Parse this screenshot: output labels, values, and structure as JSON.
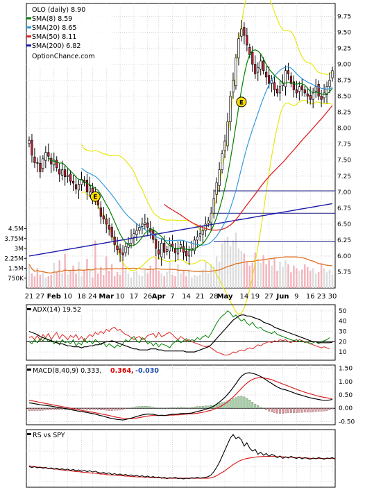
{
  "legend": [
    {
      "label": "OLO (daily) 8.90",
      "color": ""
    },
    {
      "label": "SMA(8) 8.59",
      "color": "#008000"
    },
    {
      "label": "SMA(20) 8.65",
      "color": "#3399dd"
    },
    {
      "label": "SMA(50) 8.11",
      "color": "#dd2222"
    },
    {
      "label": "SMA(200) 6.82",
      "color": "#1a1aaa"
    }
  ],
  "site": "OptionChance.com",
  "colors": {
    "up": "#ffffff",
    "down": "#cc2233",
    "sma8": "#008000",
    "sma20": "#3399dd",
    "sma50": "#dd2222",
    "sma200": "#1a1aaa",
    "bb": "#e6e600",
    "vol_up": "#dddddd",
    "vol_down": "#f2b6be",
    "vol_avg": "#e07020",
    "adx": "#000000",
    "pdi": "#008000",
    "mdi": "#dd2222",
    "macd": "#000000",
    "signal": "#dd2222",
    "rs": "#000000",
    "rs_ma": "#dd2222",
    "earnings": "#ffe000"
  },
  "chart_data": [
    {
      "type": "candlestick",
      "title": "OLO (daily) 8.90",
      "y_ticks": [
        "9.75",
        "9.50",
        "9.25",
        "9.00",
        "8.75",
        "8.50",
        "8.25",
        "8.00",
        "7.75",
        "7.50",
        "7.25",
        "7.00",
        "6.75",
        "6.50",
        "6.25",
        "6.00",
        "5.75"
      ],
      "ylim": [
        5.5,
        9.95
      ],
      "x_labels": [
        "21",
        "27",
        "Feb",
        "10",
        "18",
        "24",
        "Mar",
        "10",
        "17",
        "26",
        "Apr",
        "7",
        "14",
        "21",
        "28",
        "May",
        "14",
        "19",
        "27",
        "Jun",
        "9",
        "16",
        "23",
        "30"
      ],
      "x_label_index": [
        0,
        4,
        9,
        14,
        19,
        23,
        28,
        33,
        38,
        43,
        47,
        52,
        57,
        62,
        67,
        71,
        78,
        82,
        87,
        92,
        97,
        102,
        106,
        110
      ],
      "bold_labels": [
        "Feb",
        "Mar",
        "Apr",
        "May",
        "Jun"
      ],
      "earnings_marker": "E",
      "earnings_points": [
        {
          "i": 24,
          "price": 6.93
        },
        {
          "i": 77,
          "price": 8.41
        }
      ],
      "horizontal_levels": [
        7.02,
        6.67,
        6.23
      ],
      "closes": [
        7.81,
        7.58,
        7.46,
        7.45,
        7.32,
        7.52,
        7.62,
        7.56,
        7.44,
        7.5,
        7.38,
        7.28,
        7.35,
        7.24,
        7.26,
        7.17,
        7.14,
        7.05,
        7.12,
        7.2,
        7.15,
        7.0,
        7.1,
        6.95,
        6.9,
        6.8,
        6.62,
        6.58,
        6.5,
        6.42,
        6.3,
        6.18,
        6.1,
        6.05,
        6.02,
        6.15,
        6.2,
        6.28,
        6.35,
        6.4,
        6.45,
        6.5,
        6.52,
        6.45,
        6.37,
        6.26,
        6.12,
        6.03,
        6.2,
        6.06,
        6.1,
        6.19,
        6.15,
        6.05,
        6.12,
        6.18,
        6.06,
        6.0,
        6.08,
        6.12,
        6.25,
        6.3,
        6.35,
        6.4,
        6.5,
        6.55,
        6.67,
        6.9,
        7.15,
        7.35,
        7.6,
        7.8,
        8.1,
        8.5,
        8.75,
        9.1,
        9.4,
        9.55,
        9.45,
        9.3,
        9.15,
        9.0,
        8.85,
        8.95,
        9.05,
        8.9,
        8.8,
        8.7,
        8.75,
        8.6,
        8.55,
        8.65,
        8.7,
        8.9,
        8.85,
        8.7,
        8.6,
        8.55,
        8.65,
        8.6,
        8.55,
        8.5,
        8.45,
        8.55,
        8.65,
        8.5,
        8.45,
        8.55,
        8.65,
        8.75,
        8.9
      ],
      "volume_ticks": [
        "4.5M",
        "3.75M",
        "3M",
        "2.25M",
        "1.5M",
        "750K"
      ],
      "volume_max_millions": 5.0,
      "volume_millions": [
        1.8,
        1.1,
        0.9,
        1.5,
        1.0,
        1.2,
        0.8,
        0.9,
        1.0,
        1.9,
        1.2,
        2.1,
        1.1,
        2.6,
        1.0,
        1.3,
        1.7,
        1.1,
        2.0,
        0.9,
        1.3,
        2.2,
        1.4,
        0.8,
        3.6,
        1.1,
        1.6,
        1.0,
        2.4,
        1.3,
        1.8,
        0.9,
        1.2,
        1.0,
        2.0,
        1.5,
        1.1,
        0.8,
        1.2,
        1.3,
        1.0,
        0.9,
        1.4,
        1.1,
        1.7,
        1.4,
        2.5,
        1.3,
        1.1,
        0.9,
        1.2,
        2.2,
        1.0,
        0.9,
        1.8,
        1.1,
        1.3,
        0.9,
        1.4,
        0.8,
        1.0,
        0.9,
        1.0,
        1.4,
        2.0,
        1.1,
        1.8,
        1.6,
        2.4,
        2.0,
        3.4,
        3.6,
        3.9,
        3.2,
        3.6,
        4.2,
        3.0,
        2.8,
        2.6,
        2.0,
        1.7,
        1.9,
        2.7,
        2.2,
        1.9,
        2.5,
        1.8,
        2.1,
        1.7,
        2.3,
        1.3,
        2.0,
        1.6,
        2.1,
        1.8,
        1.2,
        1.7,
        1.5,
        1.3,
        1.4,
        1.8,
        1.6,
        1.3,
        1.5,
        1.1,
        1.2,
        1.9,
        1.5,
        1.2,
        1.4,
        1.0
      ]
    },
    {
      "type": "line",
      "name": "ADX(14) 19.52",
      "y_ticks": [
        "50",
        "40",
        "30",
        "20",
        "10"
      ],
      "ylim": [
        2,
        56
      ],
      "reference_line": 20,
      "adx": [
        30,
        29,
        28,
        27,
        25,
        24,
        23,
        22,
        21,
        20,
        19,
        18,
        18,
        17,
        16,
        16,
        15,
        15,
        15,
        14,
        15,
        15,
        16,
        16,
        17,
        17,
        18,
        19,
        20,
        20,
        21,
        20,
        19,
        18,
        17,
        16,
        15,
        14,
        13,
        13,
        12,
        12,
        12,
        12,
        13,
        13,
        13,
        12,
        12,
        11,
        11,
        11,
        11,
        11,
        11,
        11,
        11,
        10,
        10,
        10,
        10,
        11,
        12,
        13,
        14,
        15,
        17,
        20,
        23,
        26,
        29,
        32,
        35,
        38,
        41,
        43,
        45,
        46,
        46,
        45,
        45,
        44,
        43,
        42,
        41,
        39,
        38,
        37,
        36,
        34,
        33,
        32,
        31,
        30,
        29,
        28,
        27,
        26,
        25,
        24,
        23,
        22,
        21,
        20,
        20,
        19,
        19,
        19,
        19,
        19,
        19.5
      ],
      "plus_di": [
        20,
        18,
        22,
        19,
        23,
        21,
        24,
        20,
        22,
        18,
        21,
        17,
        22,
        19,
        20,
        18,
        22,
        16,
        19,
        17,
        23,
        19,
        21,
        18,
        22,
        20,
        17,
        19,
        15,
        18,
        16,
        14,
        17,
        15,
        18,
        22,
        20,
        23,
        25,
        21,
        19,
        24,
        22,
        18,
        20,
        16,
        19,
        15,
        18,
        17,
        16,
        14,
        18,
        20,
        22,
        19,
        21,
        23,
        20,
        22,
        21,
        24,
        22,
        25,
        26,
        24,
        28,
        33,
        38,
        42,
        45,
        47,
        50,
        48,
        44,
        46,
        43,
        40,
        42,
        38,
        36,
        39,
        35,
        33,
        34,
        31,
        30,
        29,
        28,
        30,
        27,
        26,
        25,
        24,
        23,
        22,
        21,
        22,
        20,
        21,
        19,
        20,
        18,
        19,
        20,
        18,
        20,
        21,
        22,
        24
      ],
      "minus_di": [
        24,
        25,
        22,
        26,
        21,
        27,
        24,
        28,
        22,
        26,
        29,
        23,
        27,
        25,
        22,
        26,
        24,
        27,
        22,
        25,
        21,
        24,
        27,
        25,
        29,
        27,
        30,
        28,
        32,
        30,
        33,
        34,
        31,
        32,
        29,
        27,
        26,
        24,
        22,
        24,
        25,
        22,
        23,
        26,
        27,
        28,
        24,
        29,
        25,
        26,
        28,
        29,
        27,
        24,
        22,
        25,
        23,
        21,
        22,
        20,
        19,
        18,
        17,
        16,
        15,
        16,
        14,
        12,
        10,
        9,
        8,
        7,
        7,
        8,
        10,
        9,
        11,
        12,
        11,
        13,
        14,
        13,
        15,
        17,
        16,
        18,
        19,
        20,
        19,
        21,
        20,
        22,
        21,
        22,
        20,
        19,
        21,
        20,
        22,
        21,
        20,
        19,
        18,
        17,
        16,
        15,
        14,
        15,
        14,
        13
      ]
    },
    {
      "type": "line",
      "name": "MACD(8,40,9) 0.333,",
      "signal_label": "0.364,",
      "hist_label": "-0.030",
      "y_ticks": [
        "1.50",
        "1.00",
        "0.50",
        "0.00",
        "-0.50"
      ],
      "ylim": [
        -0.62,
        1.62
      ],
      "macd": [
        0.2,
        0.19,
        0.17,
        0.15,
        0.13,
        0.12,
        0.11,
        0.09,
        0.08,
        0.06,
        0.04,
        0.02,
        0.01,
        -0.01,
        -0.03,
        -0.05,
        -0.07,
        -0.09,
        -0.11,
        -0.12,
        -0.14,
        -0.16,
        -0.18,
        -0.2,
        -0.22,
        -0.25,
        -0.28,
        -0.3,
        -0.33,
        -0.36,
        -0.39,
        -0.4,
        -0.42,
        -0.43,
        -0.44,
        -0.42,
        -0.4,
        -0.37,
        -0.34,
        -0.31,
        -0.28,
        -0.25,
        -0.23,
        -0.22,
        -0.22,
        -0.23,
        -0.25,
        -0.27,
        -0.26,
        -0.27,
        -0.26,
        -0.24,
        -0.23,
        -0.23,
        -0.22,
        -0.2,
        -0.2,
        -0.2,
        -0.19,
        -0.18,
        -0.15,
        -0.12,
        -0.1,
        -0.07,
        -0.04,
        -0.01,
        0.03,
        0.08,
        0.15,
        0.23,
        0.32,
        0.41,
        0.52,
        0.64,
        0.78,
        0.92,
        1.07,
        1.2,
        1.28,
        1.32,
        1.33,
        1.31,
        1.28,
        1.24,
        1.19,
        1.13,
        1.06,
        0.99,
        0.93,
        0.86,
        0.8,
        0.75,
        0.71,
        0.69,
        0.66,
        0.62,
        0.58,
        0.54,
        0.51,
        0.48,
        0.45,
        0.42,
        0.39,
        0.37,
        0.35,
        0.33,
        0.31,
        0.3,
        0.3,
        0.31,
        0.333
      ],
      "signal": [
        0.3,
        0.28,
        0.26,
        0.24,
        0.22,
        0.2,
        0.18,
        0.16,
        0.14,
        0.12,
        0.1,
        0.08,
        0.06,
        0.04,
        0.02,
        0.0,
        -0.02,
        -0.04,
        -0.06,
        -0.08,
        -0.1,
        -0.11,
        -0.13,
        -0.15,
        -0.17,
        -0.19,
        -0.21,
        -0.23,
        -0.25,
        -0.27,
        -0.3,
        -0.32,
        -0.34,
        -0.36,
        -0.38,
        -0.39,
        -0.39,
        -0.39,
        -0.38,
        -0.37,
        -0.35,
        -0.33,
        -0.31,
        -0.3,
        -0.28,
        -0.27,
        -0.27,
        -0.27,
        -0.27,
        -0.27,
        -0.27,
        -0.26,
        -0.26,
        -0.25,
        -0.25,
        -0.24,
        -0.23,
        -0.22,
        -0.21,
        -0.21,
        -0.2,
        -0.19,
        -0.17,
        -0.15,
        -0.13,
        -0.1,
        -0.08,
        -0.04,
        0.0,
        0.05,
        0.1,
        0.17,
        0.24,
        0.33,
        0.42,
        0.52,
        0.63,
        0.74,
        0.85,
        0.94,
        1.02,
        1.08,
        1.12,
        1.14,
        1.15,
        1.14,
        1.12,
        1.1,
        1.07,
        1.03,
        0.99,
        0.95,
        0.91,
        0.87,
        0.83,
        0.79,
        0.75,
        0.71,
        0.67,
        0.64,
        0.6,
        0.57,
        0.54,
        0.51,
        0.48,
        0.45,
        0.43,
        0.41,
        0.39,
        0.37,
        0.364
      ]
    },
    {
      "type": "line",
      "name": "RS vs SPY",
      "y_ticks": [],
      "ylim": [
        0.5,
        1.9
      ],
      "rs": [
        1.0,
        0.98,
        1.0,
        0.97,
        0.99,
        0.96,
        0.98,
        0.95,
        0.97,
        0.94,
        0.96,
        0.93,
        0.95,
        0.92,
        0.94,
        0.91,
        0.93,
        0.9,
        0.92,
        0.89,
        0.91,
        0.88,
        0.9,
        0.87,
        0.89,
        0.86,
        0.84,
        0.86,
        0.83,
        0.85,
        0.81,
        0.83,
        0.8,
        0.82,
        0.79,
        0.81,
        0.78,
        0.8,
        0.77,
        0.79,
        0.76,
        0.78,
        0.75,
        0.77,
        0.74,
        0.76,
        0.73,
        0.75,
        0.72,
        0.74,
        0.71,
        0.73,
        0.72,
        0.74,
        0.71,
        0.72,
        0.7,
        0.72,
        0.71,
        0.73,
        0.72,
        0.74,
        0.72,
        0.73,
        0.74,
        0.76,
        0.8,
        0.88,
        0.98,
        1.1,
        1.25,
        1.4,
        1.55,
        1.7,
        1.78,
        1.68,
        1.72,
        1.65,
        1.5,
        1.58,
        1.45,
        1.38,
        1.42,
        1.3,
        1.35,
        1.28,
        1.32,
        1.25,
        1.3,
        1.27,
        1.22,
        1.26,
        1.2,
        1.24,
        1.21,
        1.25,
        1.22,
        1.2,
        1.23,
        1.19,
        1.22,
        1.2,
        1.18,
        1.21,
        1.19,
        1.22,
        1.2,
        1.18,
        1.21,
        1.2,
        1.22,
        1.18
      ],
      "rs_ma": [
        1.02,
        1.01,
        1.0,
        0.99,
        0.98,
        0.98,
        0.97,
        0.96,
        0.95,
        0.94,
        0.94,
        0.93,
        0.92,
        0.91,
        0.91,
        0.9,
        0.89,
        0.88,
        0.88,
        0.87,
        0.86,
        0.86,
        0.85,
        0.84,
        0.84,
        0.83,
        0.82,
        0.82,
        0.81,
        0.8,
        0.8,
        0.79,
        0.79,
        0.78,
        0.78,
        0.77,
        0.77,
        0.76,
        0.76,
        0.75,
        0.75,
        0.75,
        0.74,
        0.74,
        0.74,
        0.73,
        0.73,
        0.73,
        0.73,
        0.72,
        0.72,
        0.72,
        0.72,
        0.72,
        0.72,
        0.72,
        0.72,
        0.72,
        0.72,
        0.72,
        0.72,
        0.72,
        0.72,
        0.72,
        0.72,
        0.72,
        0.73,
        0.75,
        0.78,
        0.82,
        0.86,
        0.9,
        0.95,
        1.0,
        1.05,
        1.09,
        1.13,
        1.16,
        1.18,
        1.2,
        1.21,
        1.22,
        1.23,
        1.24,
        1.24,
        1.25,
        1.25,
        1.25,
        1.25,
        1.25,
        1.24,
        1.24,
        1.24,
        1.23,
        1.23,
        1.23,
        1.22,
        1.22,
        1.22,
        1.21,
        1.21,
        1.21,
        1.2,
        1.2,
        1.2,
        1.2,
        1.2,
        1.2,
        1.2,
        1.2,
        1.2,
        1.2
      ]
    }
  ]
}
